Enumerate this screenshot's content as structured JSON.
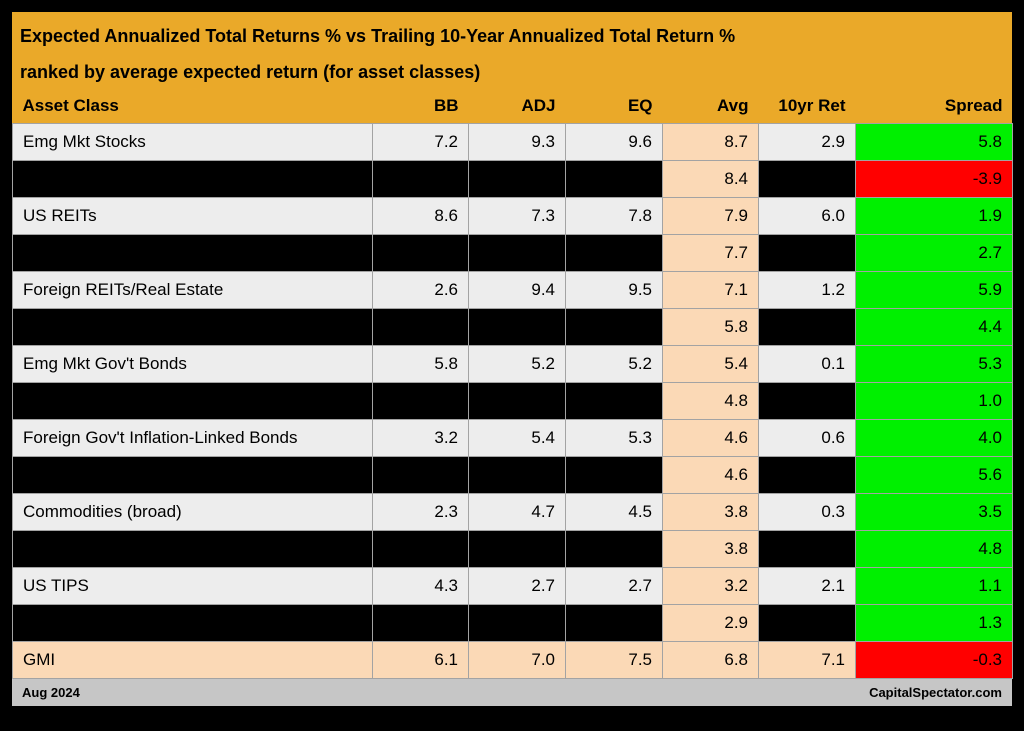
{
  "colors": {
    "panel_gold": "#EAA929",
    "row_light": "#EDEDED",
    "avg_peach": "#FBD9B6",
    "spread_green": "#00F000",
    "spread_red": "#FF0000",
    "redacted_black": "#000000",
    "footer_gray": "#C6C6C6",
    "border_gray": "#A3A3A3",
    "text_black": "#000000"
  },
  "chart_data": {
    "type": "table",
    "title": "Expected Annualized Total Returns % vs Trailing 10-Year Annualized Total Return %",
    "subtitle": "ranked by average expected return (for asset classes)",
    "columns": [
      "Asset Class",
      "BB",
      "ADJ",
      "EQ",
      "Avg",
      "10yr Ret",
      "Spread"
    ],
    "rows": [
      {
        "style": "normal",
        "asset_class": "Emg Mkt Stocks",
        "bb": "7.2",
        "adj": "9.3",
        "eq": "9.6",
        "avg": "8.7",
        "ret_10yr": "2.9",
        "spread": "5.8",
        "spread_color": "green"
      },
      {
        "style": "redacted",
        "asset_class": "",
        "bb": "",
        "adj": "",
        "eq": "",
        "avg": "8.4",
        "ret_10yr": "",
        "spread": "-3.9",
        "spread_color": "red"
      },
      {
        "style": "normal",
        "asset_class": "US REITs",
        "bb": "8.6",
        "adj": "7.3",
        "eq": "7.8",
        "avg": "7.9",
        "ret_10yr": "6.0",
        "spread": "1.9",
        "spread_color": "green"
      },
      {
        "style": "redacted",
        "asset_class": "",
        "bb": "",
        "adj": "",
        "eq": "",
        "avg": "7.7",
        "ret_10yr": "",
        "spread": "2.7",
        "spread_color": "green"
      },
      {
        "style": "normal",
        "asset_class": "Foreign REITs/Real Estate",
        "bb": "2.6",
        "adj": "9.4",
        "eq": "9.5",
        "avg": "7.1",
        "ret_10yr": "1.2",
        "spread": "5.9",
        "spread_color": "green"
      },
      {
        "style": "redacted",
        "asset_class": "",
        "bb": "",
        "adj": "",
        "eq": "",
        "avg": "5.8",
        "ret_10yr": "",
        "spread": "4.4",
        "spread_color": "green"
      },
      {
        "style": "normal",
        "asset_class": "Emg Mkt Gov't Bonds",
        "bb": "5.8",
        "adj": "5.2",
        "eq": "5.2",
        "avg": "5.4",
        "ret_10yr": "0.1",
        "spread": "5.3",
        "spread_color": "green"
      },
      {
        "style": "redacted",
        "asset_class": "",
        "bb": "",
        "adj": "",
        "eq": "",
        "avg": "4.8",
        "ret_10yr": "",
        "spread": "1.0",
        "spread_color": "green"
      },
      {
        "style": "normal",
        "asset_class": "Foreign Gov't Inflation-Linked Bonds",
        "bb": "3.2",
        "adj": "5.4",
        "eq": "5.3",
        "avg": "4.6",
        "ret_10yr": "0.6",
        "spread": "4.0",
        "spread_color": "green"
      },
      {
        "style": "redacted",
        "asset_class": "",
        "bb": "",
        "adj": "",
        "eq": "",
        "avg": "4.6",
        "ret_10yr": "",
        "spread": "5.6",
        "spread_color": "green"
      },
      {
        "style": "normal",
        "asset_class": "Commodities (broad)",
        "bb": "2.3",
        "adj": "4.7",
        "eq": "4.5",
        "avg": "3.8",
        "ret_10yr": "0.3",
        "spread": "3.5",
        "spread_color": "green"
      },
      {
        "style": "redacted",
        "asset_class": "",
        "bb": "",
        "adj": "",
        "eq": "",
        "avg": "3.8",
        "ret_10yr": "",
        "spread": "4.8",
        "spread_color": "green"
      },
      {
        "style": "normal",
        "asset_class": "US TIPS",
        "bb": "4.3",
        "adj": "2.7",
        "eq": "2.7",
        "avg": "3.2",
        "ret_10yr": "2.1",
        "spread": "1.1",
        "spread_color": "green"
      },
      {
        "style": "redacted",
        "asset_class": "",
        "bb": "",
        "adj": "",
        "eq": "",
        "avg": "2.9",
        "ret_10yr": "",
        "spread": "1.3",
        "spread_color": "green"
      },
      {
        "style": "highlight",
        "asset_class": "GMI",
        "bb": "6.1",
        "adj": "7.0",
        "eq": "7.5",
        "avg": "6.8",
        "ret_10yr": "7.1",
        "spread": "-0.3",
        "spread_color": "red"
      }
    ]
  },
  "footer": {
    "date": "Aug 2024",
    "source": "CapitalSpectator.com"
  }
}
